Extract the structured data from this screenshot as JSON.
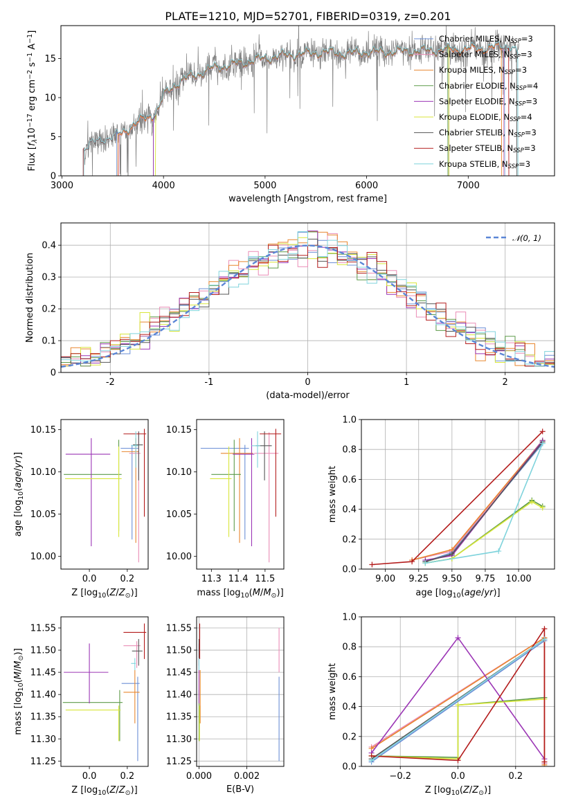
{
  "figure_title": "PLATE=1210, MJD=52701, FIBERID=0319, z=0.201",
  "series": [
    {
      "name": "Chabrier MILES, N_SSP=3",
      "label_main": "Chabrier MILES, N",
      "sub": "SSP",
      "tail": "=3",
      "color": "#6b8fd6"
    },
    {
      "name": "Salpeter MILES, N_SSP=3",
      "label_main": "Salpeter MILES, N",
      "sub": "SSP",
      "tail": "=3",
      "color": "#ea8cb5"
    },
    {
      "name": "Kroupa MILES, N_SSP=3",
      "label_main": "Kroupa MILES, N",
      "sub": "SSP",
      "tail": "=3",
      "color": "#e8862e"
    },
    {
      "name": "Chabrier ELODIE, N_SSP=4",
      "label_main": "Chabrier ELODIE, N",
      "sub": "SSP",
      "tail": "=4",
      "color": "#5c9a48"
    },
    {
      "name": "Salpeter ELODIE, N_SSP=3",
      "label_main": "Salpeter ELODIE, N",
      "sub": "SSP",
      "tail": "=3",
      "color": "#9b35b5"
    },
    {
      "name": "Kroupa ELODIE, N_SSP=4",
      "label_main": "Kroupa ELODIE, N",
      "sub": "SSP",
      "tail": "=4",
      "color": "#d8e63a"
    },
    {
      "name": "Chabrier STELIB, N_SSP=3",
      "label_main": "Chabrier STELIB, N",
      "sub": "SSP",
      "tail": "=3",
      "color": "#555555"
    },
    {
      "name": "Salpeter STELIB, N_SSP=3",
      "label_main": "Salpeter STELIB, N",
      "sub": "SSP",
      "tail": "=3",
      "color": "#b31b1b"
    },
    {
      "name": "Kroupa STELIB, N_SSP=3",
      "label_main": "Kroupa STELIB, N",
      "sub": "SSP",
      "tail": "=3",
      "color": "#7fd3dc"
    }
  ],
  "chart_data": [
    {
      "id": "spectrum",
      "type": "line",
      "title": "PLATE=1210, MJD=52701, FIBERID=0319, z=0.201",
      "xlabel": "wavelength [Angstrom, rest frame]",
      "ylabel": "Flux [f_λ 10^-17 erg cm^-2 s^-1 A^-1]",
      "xlim": [
        2990,
        7850
      ],
      "ylim": [
        0,
        19.2
      ],
      "xticks": [
        3000,
        4000,
        5000,
        6000,
        7000
      ],
      "yticks": [
        0,
        5,
        10,
        15
      ],
      "legend_position": "right",
      "continuum": {
        "x": [
          3200,
          3300,
          3400,
          3500,
          3600,
          3700,
          3800,
          3900,
          3950,
          4000,
          4100,
          4200,
          4300,
          4400,
          4500,
          4600,
          4800,
          5000,
          5200,
          5400,
          5600,
          5800,
          6000,
          6200,
          6400,
          6600,
          6800,
          7000,
          7200,
          7400,
          7500
        ],
        "y": [
          3.3,
          4.0,
          4.6,
          4.8,
          5.5,
          6.5,
          7.2,
          7.8,
          8.5,
          10.2,
          11.5,
          12.3,
          12.8,
          13.3,
          13.8,
          14.0,
          14.5,
          15.0,
          15.4,
          15.6,
          15.8,
          15.6,
          15.8,
          15.8,
          15.9,
          16.0,
          16.1,
          16.2,
          16.3,
          16.6,
          15.5
        ]
      },
      "data_range": [
        3210,
        7500
      ]
    },
    {
      "id": "residuals",
      "type": "histogram",
      "xlabel": "(data-model)/error",
      "ylabel": "Normed distribution",
      "xlim": [
        -2.5,
        2.5
      ],
      "ylim": [
        0,
        0.47
      ],
      "xticks": [
        -2,
        -1,
        0,
        1,
        2
      ],
      "yticks": [
        0,
        0.1,
        0.2,
        0.3,
        0.4
      ],
      "grid": true,
      "legend_position": "top-right",
      "reference": {
        "name": "N(0,1)",
        "label": "𝒩(0, 1)",
        "color": "#5b86d6",
        "style": "dashed"
      },
      "bin_width": 0.1,
      "bins_from": -2.5
    },
    {
      "id": "age_vs_Z",
      "type": "errorbar",
      "xlabel": "Z [log10(Z/Z⊙)]",
      "ylabel": "age [log10(age/yr)]",
      "xlim": [
        -0.15,
        0.31
      ],
      "ylim": [
        9.985,
        10.162
      ],
      "xticks": [
        0.0,
        0.2
      ],
      "xticklabels": [
        "0.0",
        "0.2"
      ],
      "yticks": [
        10.0,
        10.05,
        10.1,
        10.15
      ],
      "yticklabels": [
        "10.00",
        "10.05",
        "10.10",
        "10.15"
      ],
      "points": [
        {
          "s": 0,
          "x": 0.225,
          "y": 10.128,
          "xlo": 0.165,
          "xhi": 0.26,
          "ylo": 10.02,
          "yhi": 10.132
        },
        {
          "s": 1,
          "x": 0.26,
          "y": 10.122,
          "xlo": 0.21,
          "xhi": 0.27,
          "ylo": 9.993,
          "yhi": 10.147
        },
        {
          "s": 2,
          "x": 0.245,
          "y": 10.124,
          "xlo": 0.17,
          "xhi": 0.262,
          "ylo": 10.016,
          "yhi": 10.14
        },
        {
          "s": 3,
          "x": 0.155,
          "y": 10.097,
          "xlo": -0.135,
          "xhi": 0.17,
          "ylo": 10.03,
          "yhi": 10.138
        },
        {
          "s": 4,
          "x": 0.01,
          "y": 10.121,
          "xlo": -0.125,
          "xhi": 0.11,
          "ylo": 10.012,
          "yhi": 10.14
        },
        {
          "s": 5,
          "x": 0.155,
          "y": 10.092,
          "xlo": -0.128,
          "xhi": 0.17,
          "ylo": 10.023,
          "yhi": 10.13
        },
        {
          "s": 6,
          "x": 0.26,
          "y": 10.132,
          "xlo": 0.23,
          "xhi": 0.282,
          "ylo": 10.09,
          "yhi": 10.148
        },
        {
          "s": 7,
          "x": 0.29,
          "y": 10.145,
          "xlo": 0.18,
          "xhi": 0.3,
          "ylo": 10.047,
          "yhi": 10.151
        },
        {
          "s": 8,
          "x": 0.245,
          "y": 10.131,
          "xlo": 0.22,
          "xhi": 0.258,
          "ylo": 10.105,
          "yhi": 10.148
        }
      ]
    },
    {
      "id": "age_vs_mass",
      "type": "errorbar",
      "xlabel": "mass [log10(M/M⊙)]",
      "ylabel": "",
      "xlim": [
        11.245,
        11.57
      ],
      "ylim": [
        9.985,
        10.162
      ],
      "xticks": [
        11.3,
        11.4,
        11.5
      ],
      "xticklabels": [
        "11.3",
        "11.4",
        "11.5"
      ],
      "yticks": [
        10.0,
        10.05,
        10.1,
        10.15
      ],
      "yticklabels": [
        "10.00",
        "10.05",
        "10.10",
        "10.15"
      ],
      "points": [
        {
          "s": 0,
          "x": 11.425,
          "y": 10.128,
          "xlo": 11.26,
          "xhi": 11.44,
          "ylo": 10.02,
          "yhi": 10.132
        },
        {
          "s": 1,
          "x": 11.515,
          "y": 10.122,
          "xlo": 11.46,
          "xhi": 11.55,
          "ylo": 9.993,
          "yhi": 10.147
        },
        {
          "s": 2,
          "x": 11.405,
          "y": 10.122,
          "xlo": 11.335,
          "xhi": 11.455,
          "ylo": 10.016,
          "yhi": 10.14
        },
        {
          "s": 3,
          "x": 11.385,
          "y": 10.097,
          "xlo": 11.3,
          "xhi": 11.41,
          "ylo": 10.03,
          "yhi": 10.138
        },
        {
          "s": 4,
          "x": 11.45,
          "y": 10.121,
          "xlo": 11.38,
          "xhi": 11.46,
          "ylo": 10.012,
          "yhi": 10.14
        },
        {
          "s": 5,
          "x": 11.365,
          "y": 10.092,
          "xlo": 11.295,
          "xhi": 11.375,
          "ylo": 10.023,
          "yhi": 10.13
        },
        {
          "s": 6,
          "x": 11.498,
          "y": 10.131,
          "xlo": 11.465,
          "xhi": 11.525,
          "ylo": 10.09,
          "yhi": 10.148
        },
        {
          "s": 7,
          "x": 11.54,
          "y": 10.145,
          "xlo": 11.48,
          "xhi": 11.56,
          "ylo": 10.047,
          "yhi": 10.151
        },
        {
          "s": 8,
          "x": 11.472,
          "y": 10.131,
          "xlo": 11.45,
          "xhi": 11.482,
          "ylo": 10.105,
          "yhi": 10.148
        }
      ]
    },
    {
      "id": "weight_vs_age",
      "type": "line",
      "xlabel": "age [log10(age/yr)]",
      "ylabel": "mass weight",
      "xlim": [
        8.82,
        10.27
      ],
      "ylim": [
        0,
        1.0
      ],
      "xticks": [
        9.0,
        9.25,
        9.5,
        9.75,
        10.0
      ],
      "xticklabels": [
        "9.00",
        "9.25",
        "9.50",
        "9.75",
        "10.00"
      ],
      "yticks": [
        0,
        0.2,
        0.4,
        0.6,
        0.8,
        1.0
      ],
      "yticklabels": [
        "0.0",
        "0.2",
        "0.4",
        "0.6",
        "0.8",
        "1.0"
      ],
      "grid": true,
      "lines": [
        {
          "s": 0,
          "x": [
            9.3,
            9.5,
            10.18
          ],
          "y": [
            0.05,
            0.11,
            0.84
          ]
        },
        {
          "s": 1,
          "x": [
            9.2,
            9.5,
            10.18
          ],
          "y": [
            0.06,
            0.12,
            0.85
          ]
        },
        {
          "s": 2,
          "x": [
            9.2,
            9.5,
            10.18
          ],
          "y": [
            0.06,
            0.13,
            0.86
          ]
        },
        {
          "s": 3,
          "x": [
            9.3,
            9.5,
            10.1,
            10.18
          ],
          "y": [
            0.04,
            0.07,
            0.46,
            0.42
          ]
        },
        {
          "s": 4,
          "x": [
            9.3,
            9.5,
            10.18
          ],
          "y": [
            0.06,
            0.09,
            0.86
          ]
        },
        {
          "s": 5,
          "x": [
            9.3,
            9.5,
            10.1,
            10.18
          ],
          "y": [
            0.04,
            0.07,
            0.45,
            0.41
          ]
        },
        {
          "s": 6,
          "x": [
            9.3,
            9.5,
            10.18
          ],
          "y": [
            0.05,
            0.1,
            0.85
          ]
        },
        {
          "s": 7,
          "x": [
            8.9,
            9.2,
            10.18
          ],
          "y": [
            0.03,
            0.05,
            0.92
          ]
        },
        {
          "s": 8,
          "x": [
            9.3,
            9.85,
            10.18
          ],
          "y": [
            0.04,
            0.12,
            0.84
          ]
        }
      ]
    },
    {
      "id": "mass_vs_Z",
      "type": "errorbar",
      "xlabel": "Z [log10(Z/Z⊙)]",
      "ylabel": "mass [log10(M/M⊙)]",
      "xlim": [
        -0.15,
        0.31
      ],
      "ylim": [
        11.238,
        11.575
      ],
      "xticks": [
        0.0,
        0.2
      ],
      "xticklabels": [
        "0.0",
        "0.2"
      ],
      "yticks": [
        11.25,
        11.3,
        11.35,
        11.4,
        11.45,
        11.5,
        11.55
      ],
      "yticklabels": [
        "11.25",
        "11.30",
        "11.35",
        "11.40",
        "11.45",
        "11.50",
        "11.55"
      ],
      "points": [
        {
          "s": 0,
          "x": 0.255,
          "y": 11.425,
          "xlo": 0.17,
          "xhi": 0.265,
          "ylo": 11.25,
          "yhi": 11.44
        },
        {
          "s": 1,
          "x": 0.25,
          "y": 11.51,
          "xlo": 0.18,
          "xhi": 0.27,
          "ylo": 11.46,
          "yhi": 11.52
        },
        {
          "s": 2,
          "x": 0.24,
          "y": 11.405,
          "xlo": 0.18,
          "xhi": 0.265,
          "ylo": 11.335,
          "yhi": 11.455
        },
        {
          "s": 3,
          "x": 0.16,
          "y": 11.382,
          "xlo": -0.14,
          "xhi": 0.175,
          "ylo": 11.295,
          "yhi": 11.41
        },
        {
          "s": 4,
          "x": 0.0,
          "y": 11.45,
          "xlo": -0.135,
          "xhi": 0.1,
          "ylo": 11.38,
          "yhi": 11.515
        },
        {
          "s": 5,
          "x": 0.155,
          "y": 11.365,
          "xlo": -0.125,
          "xhi": 0.165,
          "ylo": 11.295,
          "yhi": 11.375
        },
        {
          "s": 6,
          "x": 0.26,
          "y": 11.498,
          "xlo": 0.225,
          "xhi": 0.28,
          "ylo": 11.465,
          "yhi": 11.525
        },
        {
          "s": 7,
          "x": 0.29,
          "y": 11.54,
          "xlo": 0.18,
          "xhi": 0.3,
          "ylo": 11.48,
          "yhi": 11.56
        },
        {
          "s": 8,
          "x": 0.24,
          "y": 11.47,
          "xlo": 0.22,
          "xhi": 0.245,
          "ylo": 11.455,
          "yhi": 11.482
        }
      ]
    },
    {
      "id": "mass_vs_EBV",
      "type": "errorbar",
      "xlabel": "E(B-V)",
      "ylabel": "",
      "xlim": [
        -0.0001,
        0.00355
      ],
      "ylim": [
        11.238,
        11.575
      ],
      "xticks": [
        0.0,
        0.002
      ],
      "xticklabels": [
        "0.000",
        "0.002"
      ],
      "yticks": [
        11.25,
        11.3,
        11.35,
        11.4,
        11.45,
        11.5,
        11.55
      ],
      "yticklabels": [
        "11.25",
        "11.30",
        "11.35",
        "11.40",
        "11.45",
        "11.50",
        "11.55"
      ],
      "grid": true,
      "points": [
        {
          "s": 0,
          "x": 0.00335,
          "y": 11.425,
          "xlo": 0.00335,
          "xhi": 0.00335,
          "ylo": 11.25,
          "yhi": 11.44
        },
        {
          "s": 1,
          "x": 0.00335,
          "y": 11.51,
          "xlo": 0.00335,
          "xhi": 0.00335,
          "ylo": 11.45,
          "yhi": 11.55
        },
        {
          "s": 2,
          "x": 5e-05,
          "y": 11.405,
          "xlo": 5e-05,
          "xhi": 5e-05,
          "ylo": 11.335,
          "yhi": 11.455
        },
        {
          "s": 3,
          "x": 0.0,
          "y": 11.382,
          "xlo": 0.0,
          "xhi": 0.0,
          "ylo": 11.295,
          "yhi": 11.41
        },
        {
          "s": 4,
          "x": 0.0,
          "y": 11.45,
          "xlo": 0.0,
          "xhi": 0.0,
          "ylo": 11.38,
          "yhi": 11.515
        },
        {
          "s": 5,
          "x": 2e-05,
          "y": 11.365,
          "xlo": 2e-05,
          "xhi": 2e-05,
          "ylo": 11.295,
          "yhi": 11.375
        },
        {
          "s": 6,
          "x": 0.0,
          "y": 11.498,
          "xlo": 0.0,
          "xhi": 0.0,
          "ylo": 11.465,
          "yhi": 11.525
        },
        {
          "s": 7,
          "x": 3e-05,
          "y": 11.54,
          "xlo": 3e-05,
          "xhi": 3e-05,
          "ylo": 11.48,
          "yhi": 11.56
        },
        {
          "s": 8,
          "x": 0.0,
          "y": 11.47,
          "xlo": 0.0,
          "xhi": 0.0,
          "ylo": 11.455,
          "yhi": 11.482
        }
      ]
    },
    {
      "id": "weight_vs_Z",
      "type": "line",
      "xlabel": "Z [log10(Z/Z⊙)]",
      "ylabel": "mass weight",
      "xlim": [
        -0.335,
        0.335
      ],
      "ylim": [
        0,
        1.0
      ],
      "xticks": [
        -0.2,
        0.0,
        0.2
      ],
      "xticklabels": [
        "−0.2",
        "0.0",
        "0.2"
      ],
      "yticks": [
        0,
        0.2,
        0.4,
        0.6,
        0.8,
        1.0
      ],
      "yticklabels": [
        "0.0",
        "0.2",
        "0.4",
        "0.6",
        "0.8",
        "1.0"
      ],
      "grid": true,
      "lines": [
        {
          "s": 0,
          "x": [
            -0.3,
            0.3,
            0.3
          ],
          "y": [
            0.03,
            0.84,
            0.02
          ]
        },
        {
          "s": 1,
          "x": [
            -0.3,
            0.3,
            0.3
          ],
          "y": [
            0.13,
            0.86,
            0.02
          ]
        },
        {
          "s": 2,
          "x": [
            -0.3,
            0.3,
            0.3
          ],
          "y": [
            0.12,
            0.86,
            0.01
          ]
        },
        {
          "s": 3,
          "x": [
            -0.3,
            0.0,
            0.0,
            0.3
          ],
          "y": [
            0.07,
            0.06,
            0.41,
            0.46
          ]
        },
        {
          "s": 4,
          "x": [
            -0.3,
            0.0,
            0.3
          ],
          "y": [
            0.09,
            0.86,
            0.05
          ]
        },
        {
          "s": 5,
          "x": [
            -0.3,
            0.0,
            0.0,
            0.3
          ],
          "y": [
            0.07,
            0.05,
            0.41,
            0.45
          ]
        },
        {
          "s": 6,
          "x": [
            -0.3,
            0.3
          ],
          "y": [
            0.05,
            0.85
          ]
        },
        {
          "s": 7,
          "x": [
            -0.3,
            0.0,
            0.3,
            0.3
          ],
          "y": [
            0.07,
            0.04,
            0.92,
            0.03
          ]
        },
        {
          "s": 8,
          "x": [
            -0.3,
            0.3
          ],
          "y": [
            0.04,
            0.85
          ]
        }
      ]
    }
  ]
}
